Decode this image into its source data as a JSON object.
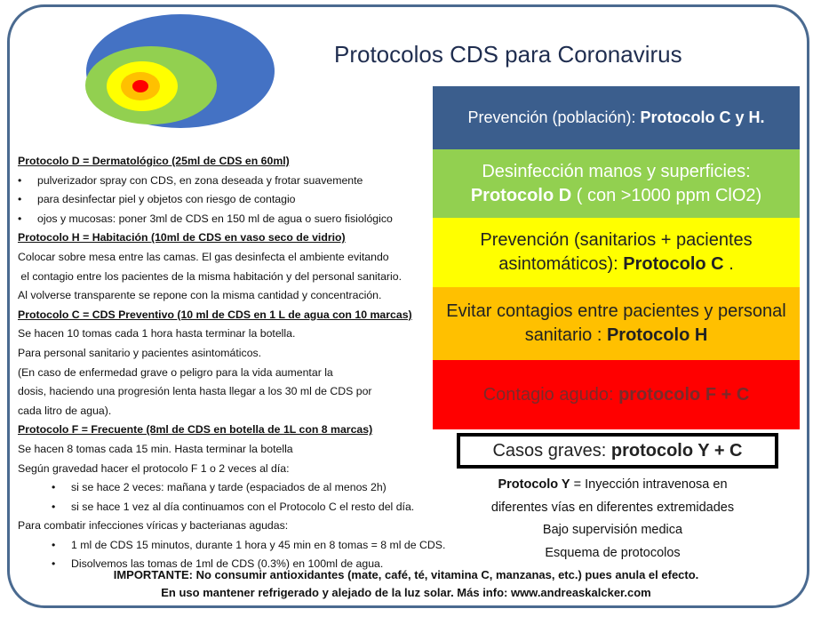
{
  "title": "Protocolos CDS para Coronavirus",
  "colors": {
    "frame": "#4a6a90",
    "blue": "#3b5e8d",
    "green": "#92d050",
    "yellow": "#ffff00",
    "orange": "#ffc000",
    "red": "#ff0000"
  },
  "left": {
    "d_head": "Protocolo D = Dermatológico (25ml de CDS en 60ml)",
    "d1": "pulverizador spray con CDS, en zona deseada y frotar suavemente",
    "d2": "para desinfectar piel y objetos con riesgo de contagio",
    "d3": "ojos y mucosas: poner 3ml de CDS en 150 ml de agua o suero fisiológico",
    "h_head": "Protocolo H = Habitación (10ml de CDS en vaso seco de vidrio)",
    "h1": "Colocar sobre mesa entre las camas. El gas desinfecta el ambiente evitando",
    "h2": " el contagio entre los pacientes de la misma habitación y del personal sanitario.",
    "h3": "Al volverse transparente se repone con la misma cantidad y concentración.",
    "c_head": "Protocolo C = CDS Preventivo (10 ml de CDS en 1 L de agua con 10 marcas)",
    "c1": "Se hacen 10 tomas cada 1 hora hasta terminar la botella.",
    "c2": "Para personal sanitario y pacientes asintomáticos.",
    "c3": "(En caso de enfermedad grave o peligro para la vida aumentar la",
    "c4": "dosis, haciendo una progresión lenta hasta llegar a los 30 ml de CDS por",
    "c5": "cada litro de agua).",
    "f_head": "Protocolo F = Frecuente (8ml de CDS en botella de 1L con 8 marcas)",
    "f1": "Se hacen 8 tomas cada 15 min. Hasta terminar la botella",
    "f2": "Según gravedad hacer el protocolo F 1 o 2 veces al día:",
    "f3": "si se hace 2 veces: mañana y tarde (espaciados de al menos 2h)",
    "f4": "si se hace 1 vez al día continuamos con el Protocolo C el resto del día.",
    "f5": "Para combatir infecciones víricas y bacterianas agudas:",
    "f6": "1 ml de CDS 15 minutos, durante 1 hora y 45 min en 8 tomas = 8 ml de CDS.",
    "f7": "Disolvemos las tomas de 1ml de CDS (0.3%) en 100ml de agua."
  },
  "boxes": [
    {
      "text": "Prevención (población): ",
      "bold": "Protocolo C y H."
    },
    {
      "text": "Desinfección manos y superficies: ",
      "bold": "Protocolo D",
      "tail": " ( con >1000 ppm ClO2)"
    },
    {
      "text": "Prevención (sanitarios + pacientes asintomáticos): ",
      "bold": "Protocolo C",
      "tail": " ."
    },
    {
      "text": "Evitar contagios entre pacientes y personal sanitario : ",
      "bold": "Protocolo H"
    },
    {
      "text": "Contagio agudo: ",
      "bold": "protocolo F + C"
    },
    {
      "text": "Casos graves: ",
      "bold": "protocolo Y + C"
    }
  ],
  "notes": {
    "y_bold": "Protocolo Y",
    "y_text": " = Inyección intravenosa en",
    "l2": "diferentes vías en diferentes extremidades",
    "l3": "Bajo supervisión medica",
    "l4": "Esquema de protocolos"
  },
  "bottom": {
    "l1": "IMPORTANTE: No consumir antioxidantes  (mate, café, té, vitamina C, manzanas, etc.) pues anula el efecto.",
    "l2": "En uso mantener refrigerado y alejado de la luz solar.  Más info: www.andreaskalcker.com"
  }
}
